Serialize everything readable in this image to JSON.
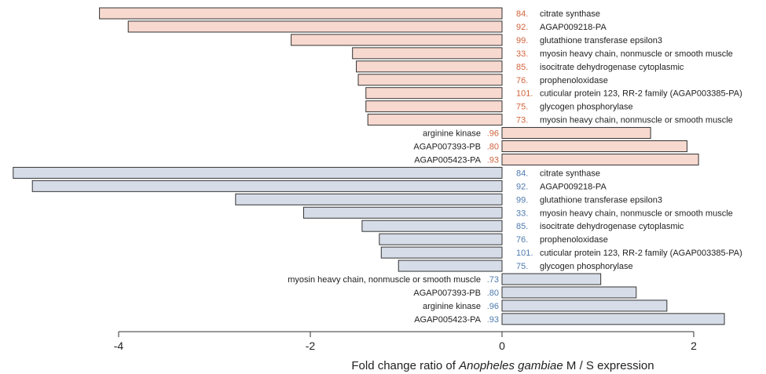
{
  "chart_data": {
    "type": "bar",
    "orientation": "horizontal",
    "xlim": [
      -4.4,
      2.6
    ],
    "xticks": [
      -4,
      -2,
      0,
      2
    ],
    "tick_labels": [
      "-4",
      "-2",
      "0",
      "2"
    ],
    "xlabel": {
      "prefix": "Fold change ratio of ",
      "italic": "Anopheles gambiae",
      "suffix": " M / S expression"
    },
    "colors": {
      "group1_fill": "#f8d9cf",
      "group2_fill": "#d6dde8",
      "group1_number": "#d2643c",
      "group2_number": "#4f7ab0",
      "bar_stroke": "#333333"
    },
    "groups": [
      {
        "bars": [
          {
            "number": "84.",
            "label": "citrate synthase",
            "value": -4.2
          },
          {
            "number": "92.",
            "label": "AGAP009218-PA",
            "value": -3.9
          },
          {
            "number": "99.",
            "label": "glutathione transferase epsilon3",
            "value": -2.2
          },
          {
            "number": "33.",
            "label": "myosin heavy chain, nonmuscle or smooth muscle",
            "value": -1.56
          },
          {
            "number": "85.",
            "label": "isocitrate dehydrogenase cytoplasmic",
            "value": -1.52
          },
          {
            "number": "76.",
            "label": "prophenoloxidase",
            "value": -1.5
          },
          {
            "number": "101.",
            "label": "cuticular protein 123, RR-2 family (AGAP003385-PA)",
            "value": -1.42
          },
          {
            "number": "75.",
            "label": "glycogen phosphorylase",
            "value": -1.42
          },
          {
            "number": "73.",
            "label": "myosin heavy chain, nonmuscle or smooth muscle",
            "value": -1.4
          },
          {
            "number": ".96",
            "label": "arginine kinase",
            "value": 1.55
          },
          {
            "number": ".80",
            "label": "AGAP007393-PB",
            "value": 1.93
          },
          {
            "number": ".93",
            "label": "AGAP005423-PA",
            "value": 2.05
          }
        ]
      },
      {
        "bars": [
          {
            "number": "84.",
            "label": "citrate synthase",
            "value": -5.1
          },
          {
            "number": "92.",
            "label": "AGAP009218-PA",
            "value": -4.9
          },
          {
            "number": "99.",
            "label": "glutathione transferase epsilon3",
            "value": -2.78
          },
          {
            "number": "33.",
            "label": "myosin heavy chain, nonmuscle or smooth muscle",
            "value": -2.07
          },
          {
            "number": "85.",
            "label": "isocitrate dehydrogenase cytoplasmic",
            "value": -1.46
          },
          {
            "number": "76.",
            "label": "prophenoloxidase",
            "value": -1.28
          },
          {
            "number": "101.",
            "label": "cuticular protein 123, RR-2 family (AGAP003385-PA)",
            "value": -1.26
          },
          {
            "number": "75.",
            "label": "glycogen phosphorylase",
            "value": -1.08
          },
          {
            "number": ".73",
            "label": "myosin heavy chain, nonmuscle or smooth muscle",
            "value": 1.03
          },
          {
            "number": ".80",
            "label": "AGAP007393-PB",
            "value": 1.4
          },
          {
            "number": ".96",
            "label": "arginine kinase",
            "value": 1.72
          },
          {
            "number": ".93",
            "label": "AGAP005423-PA",
            "value": 2.32
          }
        ]
      }
    ]
  }
}
